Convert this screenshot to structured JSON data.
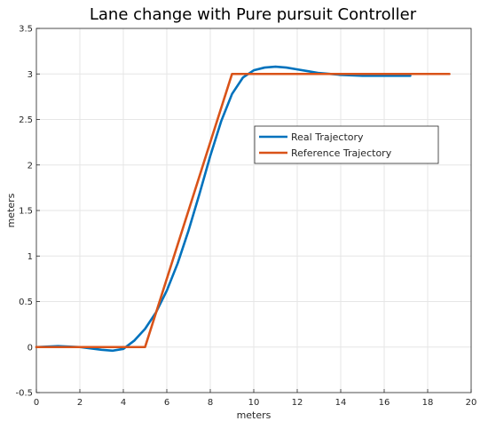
{
  "chart_data": {
    "type": "line",
    "title": "Lane change with Pure pursuit Controller",
    "xlabel": "meters",
    "ylabel": "meters",
    "xlim": [
      0,
      20
    ],
    "ylim": [
      -0.5,
      3.5
    ],
    "xticks": [
      "0",
      "2",
      "4",
      "6",
      "8",
      "10",
      "12",
      "14",
      "16",
      "18",
      "20"
    ],
    "yticks": [
      "-0.5",
      "0",
      "0.5",
      "1",
      "1.5",
      "2",
      "2.5",
      "3",
      "3.5"
    ],
    "grid": true,
    "legend_position": "right",
    "series": [
      {
        "name": "Real Trajectory",
        "color": "#0072BD",
        "x": [
          0,
          1,
          2,
          3,
          3.5,
          4,
          4.5,
          5,
          5.5,
          6,
          6.5,
          7,
          7.5,
          8,
          8.5,
          9,
          9.5,
          10,
          10.5,
          11,
          11.5,
          12,
          12.5,
          13,
          14,
          15,
          16,
          17.2
        ],
        "y": [
          0,
          0.01,
          0,
          -0.03,
          -0.04,
          -0.02,
          0.07,
          0.2,
          0.38,
          0.62,
          0.92,
          1.28,
          1.68,
          2.1,
          2.48,
          2.78,
          2.96,
          3.04,
          3.07,
          3.08,
          3.07,
          3.05,
          3.03,
          3.01,
          2.99,
          2.98,
          2.98,
          2.98
        ]
      },
      {
        "name": "Reference Trajectory",
        "color": "#D95319",
        "x": [
          0,
          5,
          9,
          19
        ],
        "y": [
          0,
          0,
          3,
          3
        ]
      }
    ]
  }
}
